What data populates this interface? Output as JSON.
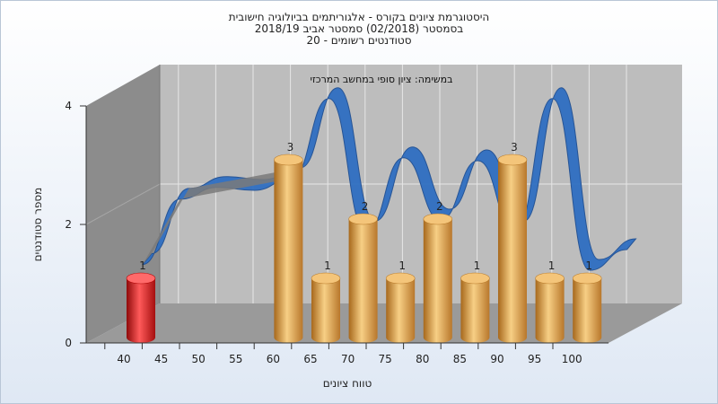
{
  "title_lines": [
    "היסטוגרמת ציונים בקורס - אלגוריתמים בביולוגיה חישובית",
    "בסמסטר  (02/2018)  סמסטר אביב 2018/19",
    "סטודנטים רשומים - 20"
  ],
  "colors": {
    "bar_main": "#e0a24a",
    "bar_highlight": "#d41818",
    "ribbon": "#2f6fc2",
    "ribbon_hidden": "#7a7a7a",
    "wall_left": "#8c8c8c",
    "wall_back": "#bdbdbd",
    "floor": "#9a9a9a"
  },
  "chart_data": {
    "type": "bar",
    "annotation": "במשימה: ציון סופי במחשב המרכזי",
    "xlabel": "טווח ציונים",
    "ylabel": "מספר סטודנטים",
    "x_ticks": [
      "40",
      "45",
      "50",
      "55",
      "60",
      "65",
      "70",
      "75",
      "80",
      "85",
      "90",
      "95",
      "100"
    ],
    "y_ticks": [
      "0",
      "2",
      "4"
    ],
    "ylim": [
      0,
      4
    ],
    "categories": [
      "40",
      "45",
      "50",
      "55",
      "60",
      "65",
      "70",
      "75",
      "80",
      "85",
      "90",
      "95",
      "100"
    ],
    "values": [
      1,
      null,
      null,
      null,
      3,
      1,
      2,
      1,
      2,
      1,
      3,
      1,
      1
    ],
    "highlight_category": "40",
    "trend_line_values": [
      0.75,
      1.85,
      2.05,
      2.0,
      2.2,
      3.55,
      1.3,
      2.55,
      1.5,
      2.5,
      1.3,
      3.55,
      0.65,
      1.0
    ]
  }
}
